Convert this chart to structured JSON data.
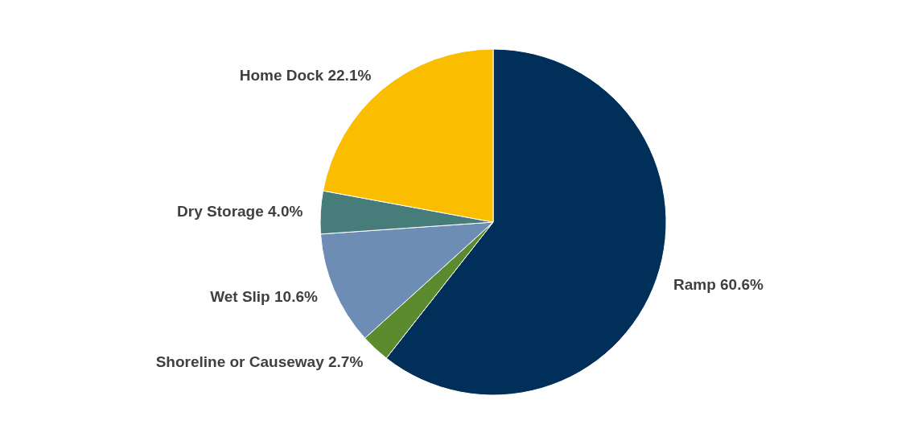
{
  "chart_data": {
    "type": "pie",
    "categories": [
      "Ramp",
      "Shoreline or Causeway",
      "Wet Slip",
      "Dry Storage",
      "Home Dock"
    ],
    "values": [
      60.6,
      2.7,
      10.6,
      4.0,
      22.1
    ],
    "value_labels": [
      "60.6%",
      "2.7%",
      "10.6%",
      "4.0%",
      "22.1%"
    ],
    "colors": [
      "#00305a",
      "#5b8a2f",
      "#6d8db5",
      "#467c7a",
      "#fbbd00"
    ],
    "legend": false
  }
}
